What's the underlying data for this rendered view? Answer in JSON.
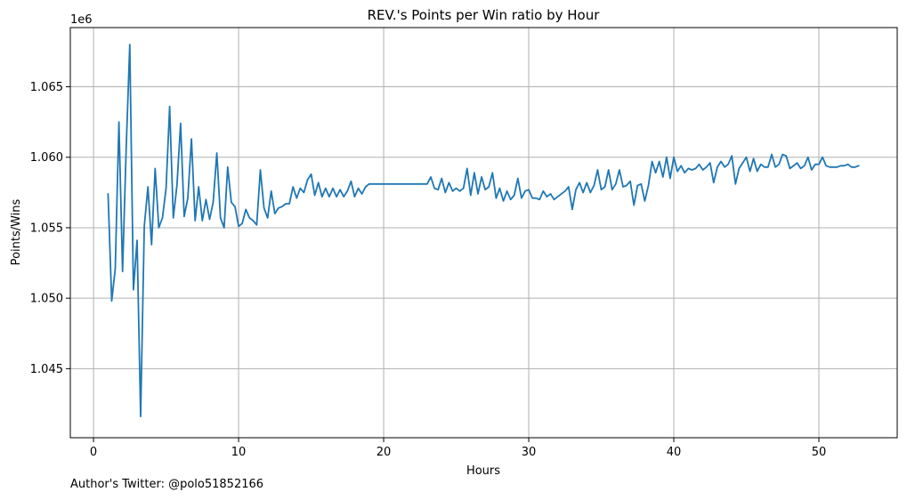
{
  "chart_data": {
    "type": "line",
    "title": "REV.'s Points per Win ratio by Hour",
    "xlabel": "Hours",
    "ylabel": "Points/Wins",
    "y_offset_label": "1e6",
    "xlim": [
      -1.6,
      55.4
    ],
    "ylim": [
      1.0401,
      1.0692
    ],
    "x_ticks": [
      0,
      10,
      20,
      30,
      40,
      50
    ],
    "y_ticks": [
      1.045,
      1.05,
      1.055,
      1.06,
      1.065
    ],
    "x_tick_labels": [
      "0",
      "10",
      "20",
      "30",
      "40",
      "50"
    ],
    "y_tick_labels": [
      "1.045",
      "1.050",
      "1.055",
      "1.060",
      "1.065"
    ],
    "grid": true,
    "line_color": "#1f77b4",
    "series": [
      {
        "x": [
          1.0,
          1.25,
          1.5,
          1.75,
          2.0,
          2.25,
          2.5,
          2.75,
          3.0,
          3.25,
          3.5,
          3.75,
          4.0,
          4.25,
          4.5,
          4.75,
          5.0,
          5.25,
          5.5,
          5.75,
          6.0,
          6.25,
          6.5,
          6.75,
          7.0,
          7.25,
          7.5,
          7.75,
          8.0,
          8.25,
          8.5,
          8.75,
          9.0,
          9.25,
          9.5,
          9.75,
          10.0,
          10.25,
          10.5,
          10.75,
          11.0,
          11.25,
          11.5,
          11.75,
          12.0,
          12.25,
          12.5,
          12.75,
          13.0,
          13.25,
          13.5,
          13.75,
          14.0,
          14.25,
          14.5,
          14.75,
          15.0,
          15.25,
          15.5,
          15.75,
          16.0,
          16.25,
          16.5,
          16.75,
          17.0,
          17.25,
          17.5,
          17.75,
          18.0,
          18.25,
          18.5,
          18.75,
          19.0,
          19.25,
          23.0,
          23.25,
          23.5,
          23.75,
          24.0,
          24.25,
          24.5,
          24.75,
          25.0,
          25.25,
          25.5,
          25.75,
          26.0,
          26.25,
          26.5,
          26.75,
          27.0,
          27.25,
          27.5,
          27.75,
          28.0,
          28.25,
          28.5,
          28.75,
          29.0,
          29.25,
          29.5,
          29.75,
          30.0,
          30.25,
          30.5,
          30.75,
          31.0,
          31.25,
          31.5,
          31.75,
          32.0,
          32.25,
          32.5,
          32.75,
          33.0,
          33.25,
          33.5,
          33.75,
          34.0,
          34.25,
          34.5,
          34.75,
          35.0,
          35.25,
          35.5,
          35.75,
          36.0,
          36.25,
          36.5,
          36.75,
          37.0,
          37.25,
          37.5,
          37.75,
          38.0,
          38.25,
          38.5,
          38.75,
          39.0,
          39.25,
          39.5,
          39.75,
          40.0,
          40.25,
          40.5,
          40.75,
          41.0,
          41.25,
          41.5,
          41.75,
          42.0,
          42.25,
          42.5,
          42.75,
          43.0,
          43.25,
          43.5,
          43.75,
          44.0,
          44.25,
          44.5,
          44.75,
          45.0,
          45.25,
          45.5,
          45.75,
          46.0,
          46.25,
          46.5,
          46.75,
          47.0,
          47.25,
          47.5,
          47.75,
          48.0,
          48.25,
          48.5,
          48.75,
          49.0,
          49.25,
          49.5,
          49.75,
          50.0,
          50.25,
          50.5,
          50.75,
          51.0,
          51.25,
          51.5,
          51.75,
          52.0,
          52.25,
          52.5,
          52.75
        ],
        "y": [
          1.0574,
          1.0498,
          1.0521,
          1.0625,
          1.0519,
          1.0605,
          1.068,
          1.0506,
          1.0541,
          1.0416,
          1.0551,
          1.0579,
          1.0538,
          1.0592,
          1.055,
          1.0557,
          1.0578,
          1.0636,
          1.0557,
          1.058,
          1.0624,
          1.0558,
          1.0571,
          1.0613,
          1.0555,
          1.0579,
          1.0555,
          1.057,
          1.0556,
          1.0568,
          1.0603,
          1.0557,
          1.055,
          1.0593,
          1.0568,
          1.0565,
          1.0551,
          1.0553,
          1.0563,
          1.0557,
          1.0555,
          1.0552,
          1.0591,
          1.0564,
          1.0557,
          1.0576,
          1.056,
          1.0564,
          1.0565,
          1.0567,
          1.0567,
          1.0579,
          1.0571,
          1.0578,
          1.0575,
          1.0584,
          1.0588,
          1.0573,
          1.0582,
          1.0572,
          1.0578,
          1.0572,
          1.0578,
          1.0572,
          1.0577,
          1.0572,
          1.0576,
          1.0583,
          1.0572,
          1.0578,
          1.0574,
          1.0579,
          1.0581,
          1.0581,
          1.0581,
          1.0586,
          1.0578,
          1.0577,
          1.0585,
          1.0575,
          1.0582,
          1.0576,
          1.0578,
          1.0576,
          1.0578,
          1.0592,
          1.0573,
          1.0589,
          1.0574,
          1.0586,
          1.0577,
          1.0579,
          1.0589,
          1.0571,
          1.0578,
          1.0569,
          1.0576,
          1.057,
          1.0573,
          1.0585,
          1.0571,
          1.0576,
          1.0577,
          1.0571,
          1.0571,
          1.057,
          1.0576,
          1.0572,
          1.0574,
          1.057,
          1.0572,
          1.0574,
          1.0576,
          1.0579,
          1.0563,
          1.0577,
          1.0582,
          1.0575,
          1.0582,
          1.0575,
          1.058,
          1.0591,
          1.0577,
          1.0579,
          1.0591,
          1.0577,
          1.0581,
          1.0591,
          1.0579,
          1.058,
          1.0583,
          1.0566,
          1.058,
          1.0581,
          1.0569,
          1.058,
          1.0597,
          1.0589,
          1.0597,
          1.0586,
          1.06,
          1.0585,
          1.06,
          1.059,
          1.0594,
          1.0589,
          1.0592,
          1.0591,
          1.0592,
          1.0595,
          1.0591,
          1.0593,
          1.0596,
          1.0582,
          1.0593,
          1.0597,
          1.0593,
          1.0595,
          1.0601,
          1.0581,
          1.0592,
          1.0596,
          1.06,
          1.059,
          1.0599,
          1.059,
          1.0595,
          1.0593,
          1.0593,
          1.0602,
          1.0593,
          1.0595,
          1.0602,
          1.0601,
          1.0592,
          1.0594,
          1.0596,
          1.0592,
          1.0594,
          1.06,
          1.0591,
          1.0595,
          1.0595,
          1.06,
          1.0594,
          1.0593,
          1.0593,
          1.0593,
          1.0594,
          1.0594,
          1.0595,
          1.0593,
          1.0593,
          1.0594
        ]
      }
    ]
  },
  "footer": {
    "note": "Author's Twitter: @polo51852166"
  }
}
